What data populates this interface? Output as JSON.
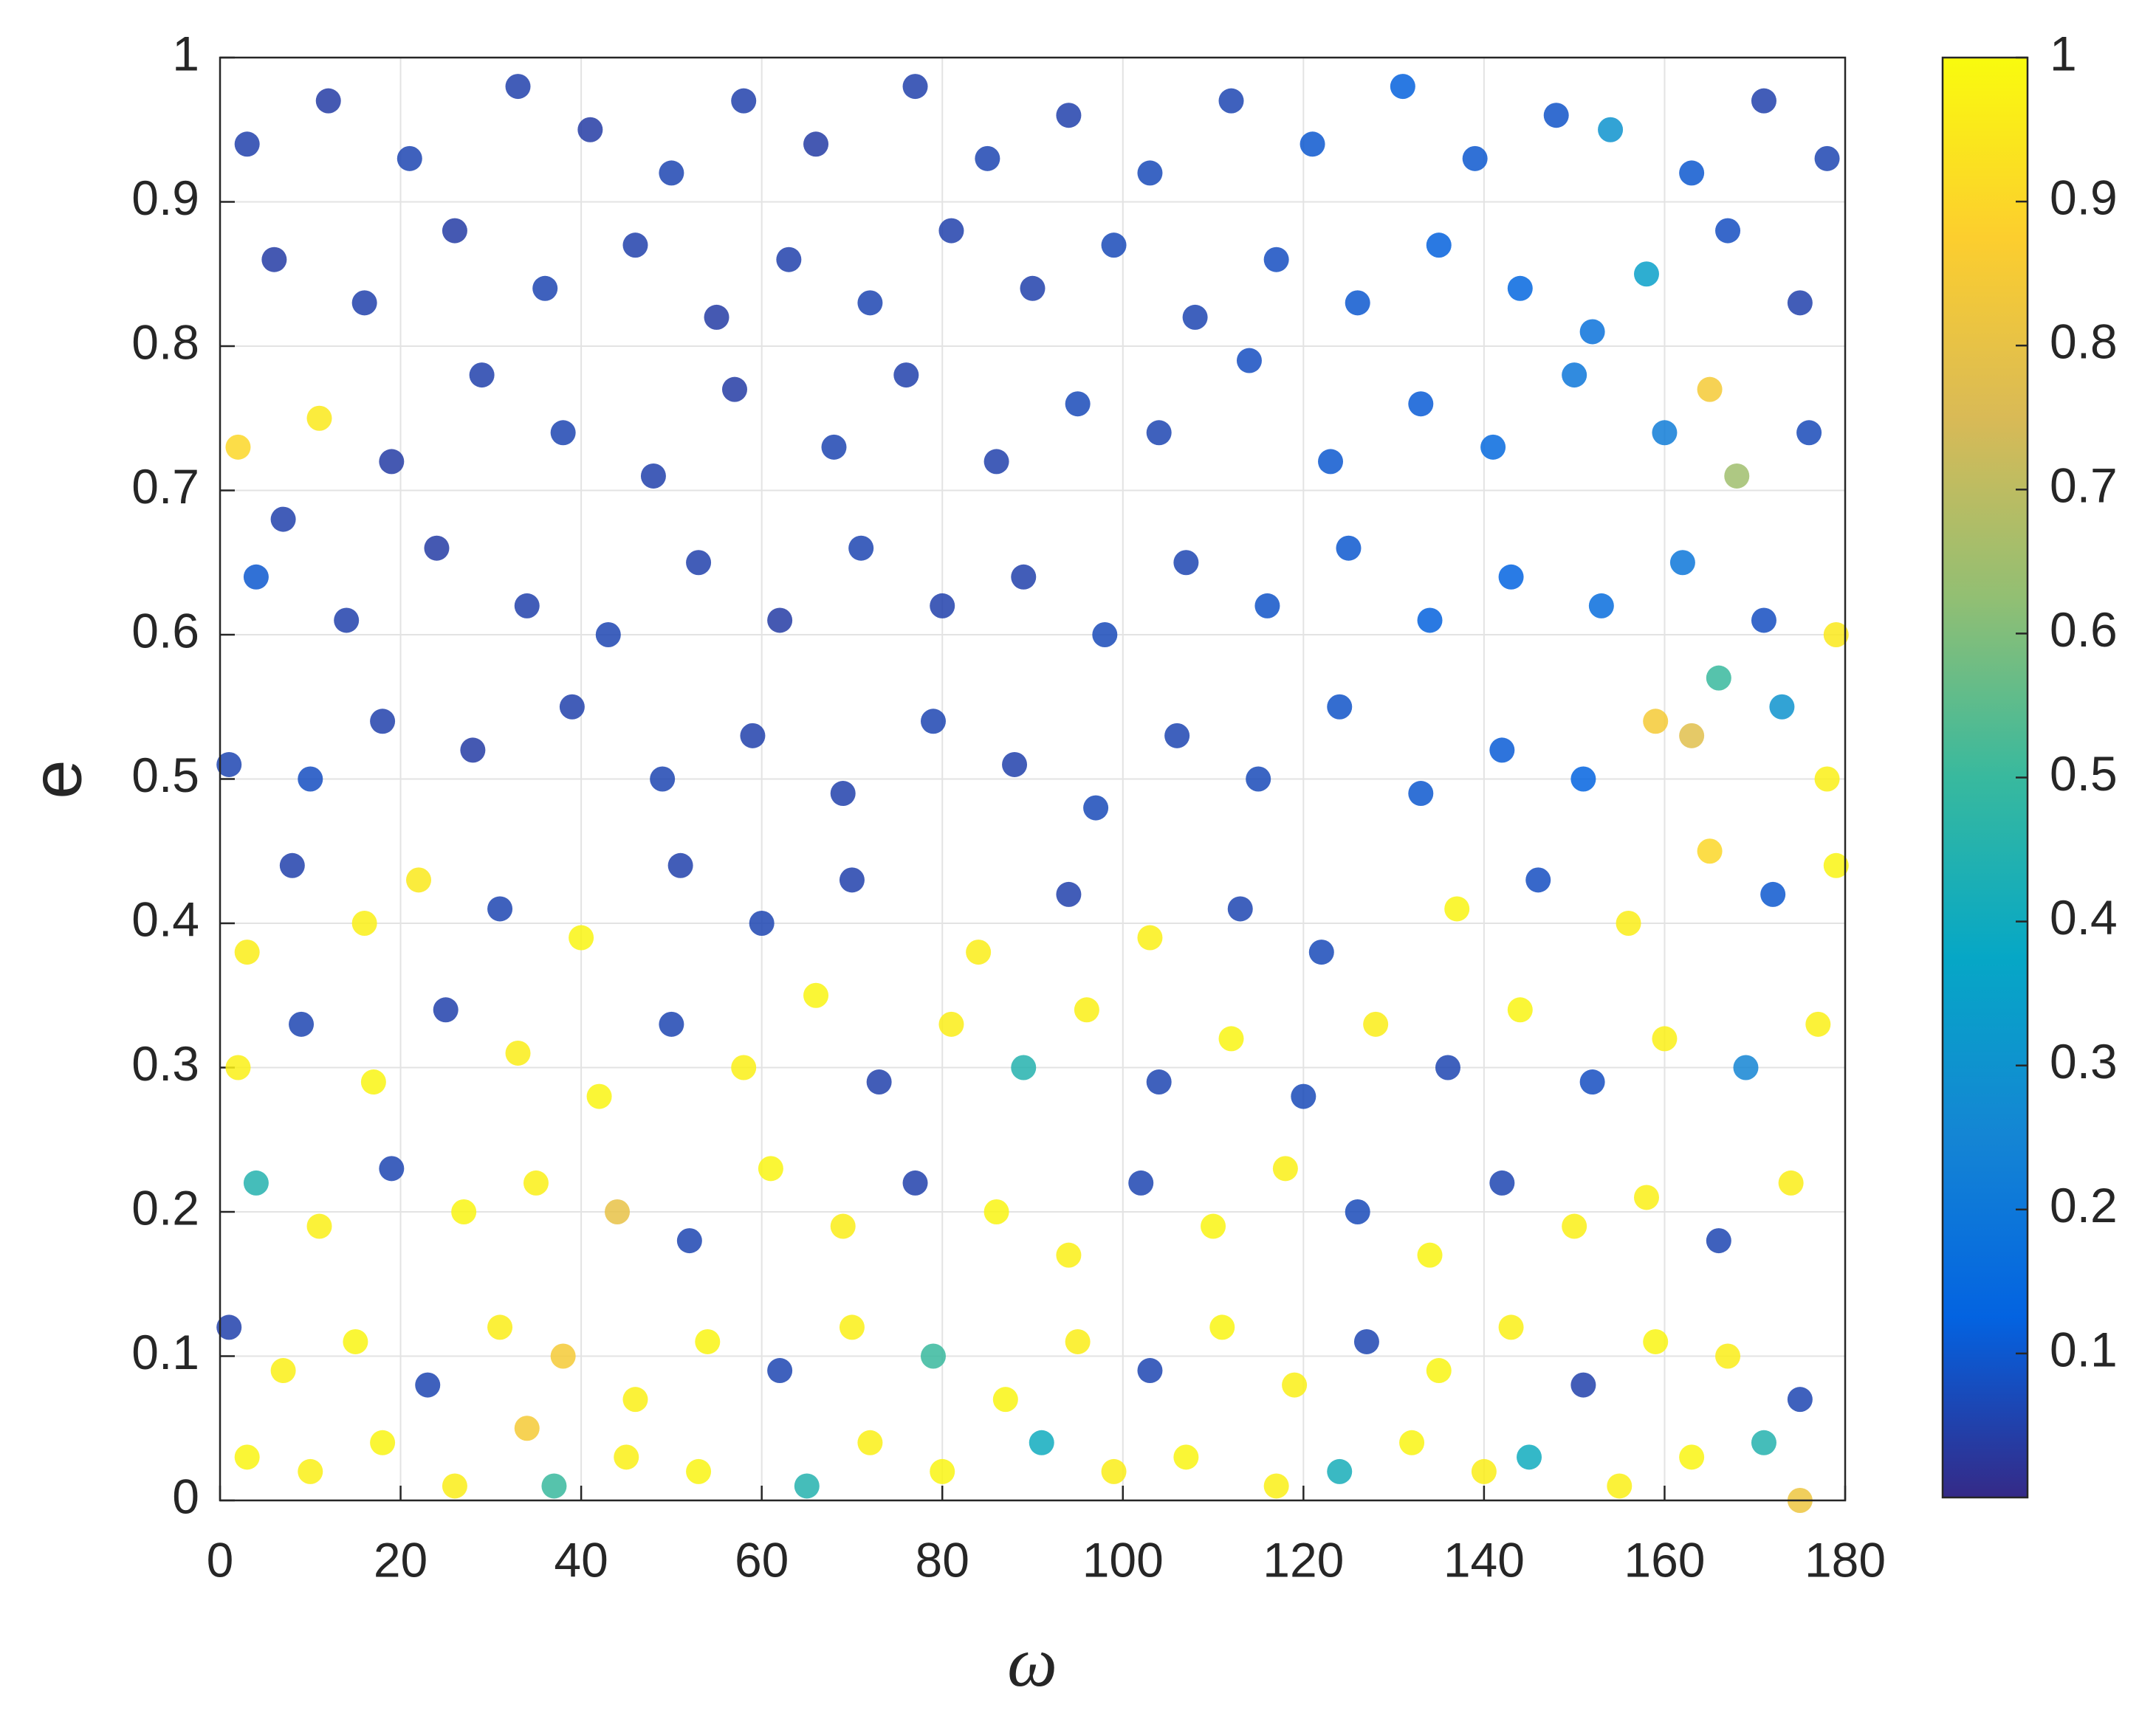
{
  "chart_data": {
    "type": "scatter",
    "xlabel": "ω",
    "ylabel": "e",
    "x": [
      3,
      12,
      21,
      33,
      41,
      50,
      58,
      66,
      77,
      85,
      94,
      103,
      112,
      121,
      131,
      139,
      148,
      154,
      163,
      171,
      178,
      6,
      16,
      26,
      36,
      46,
      55,
      63,
      72,
      81,
      90,
      99,
      108,
      117,
      126,
      135,
      144,
      152,
      158,
      167,
      175,
      2,
      11,
      7,
      19,
      29,
      38,
      48,
      57,
      68,
      76,
      86,
      95,
      104,
      114,
      123,
      133,
      141,
      150,
      160,
      165,
      168,
      176,
      4,
      14,
      24,
      34,
      43,
      53,
      62,
      71,
      80,
      89,
      98,
      107,
      116,
      125,
      134,
      143,
      153,
      162,
      166,
      171,
      179,
      1,
      10,
      18,
      28,
      39,
      49,
      59,
      69,
      79,
      88,
      97,
      106,
      115,
      124,
      133,
      142,
      151,
      159,
      163,
      173,
      178,
      3,
      8,
      16,
      22,
      31,
      40,
      51,
      60,
      70,
      84,
      94,
      103,
      113,
      122,
      137,
      146,
      156,
      165,
      172,
      179,
      2,
      9,
      17,
      25,
      33,
      42,
      50,
      58,
      66,
      73,
      81,
      89,
      96,
      104,
      112,
      120,
      128,
      136,
      144,
      152,
      160,
      169,
      177,
      4,
      11,
      19,
      27,
      35,
      44,
      52,
      61,
      69,
      77,
      86,
      94,
      102,
      110,
      118,
      126,
      134,
      142,
      150,
      158,
      166,
      174,
      1,
      7,
      15,
      23,
      31,
      38,
      46,
      54,
      62,
      70,
      79,
      87,
      95,
      103,
      111,
      119,
      127,
      135,
      143,
      151,
      159,
      167,
      175,
      3,
      10,
      18,
      26,
      34,
      37,
      45,
      53,
      65,
      72,
      80,
      91,
      99,
      107,
      117,
      124,
      132,
      140,
      145,
      155,
      163,
      171,
      175
    ],
    "values": [
      0.94,
      0.97,
      0.93,
      0.98,
      0.95,
      0.92,
      0.97,
      0.94,
      0.98,
      0.93,
      0.96,
      0.92,
      0.97,
      0.94,
      0.98,
      0.93,
      0.96,
      0.95,
      0.92,
      0.97,
      0.93,
      0.86,
      0.83,
      0.88,
      0.84,
      0.87,
      0.82,
      0.86,
      0.83,
      0.88,
      0.84,
      0.87,
      0.82,
      0.86,
      0.83,
      0.87,
      0.84,
      0.81,
      0.85,
      0.88,
      0.83,
      0.73,
      0.75,
      0.68,
      0.72,
      0.78,
      0.74,
      0.71,
      0.77,
      0.73,
      0.78,
      0.72,
      0.76,
      0.74,
      0.79,
      0.72,
      0.76,
      0.73,
      0.78,
      0.74,
      0.77,
      0.71,
      0.74,
      0.64,
      0.61,
      0.66,
      0.62,
      0.6,
      0.65,
      0.61,
      0.66,
      0.62,
      0.64,
      0.6,
      0.65,
      0.62,
      0.66,
      0.61,
      0.64,
      0.62,
      0.65,
      0.57,
      0.61,
      0.6,
      0.51,
      0.5,
      0.54,
      0.52,
      0.55,
      0.5,
      0.53,
      0.49,
      0.54,
      0.51,
      0.48,
      0.53,
      0.5,
      0.55,
      0.49,
      0.52,
      0.5,
      0.54,
      0.53,
      0.55,
      0.5,
      0.38,
      0.44,
      0.4,
      0.43,
      0.41,
      0.39,
      0.44,
      0.4,
      0.43,
      0.38,
      0.42,
      0.39,
      0.41,
      0.38,
      0.41,
      0.43,
      0.4,
      0.45,
      0.42,
      0.44,
      0.3,
      0.33,
      0.29,
      0.34,
      0.31,
      0.28,
      0.33,
      0.3,
      0.35,
      0.29,
      0.33,
      0.3,
      0.34,
      0.29,
      0.32,
      0.28,
      0.33,
      0.3,
      0.34,
      0.29,
      0.32,
      0.3,
      0.33,
      0.22,
      0.19,
      0.23,
      0.2,
      0.22,
      0.2,
      0.18,
      0.23,
      0.19,
      0.22,
      0.2,
      0.17,
      0.22,
      0.19,
      0.23,
      0.2,
      0.17,
      0.22,
      0.19,
      0.21,
      0.18,
      0.22,
      0.12,
      0.09,
      0.11,
      0.08,
      0.12,
      0.1,
      0.07,
      0.11,
      0.09,
      0.12,
      0.1,
      0.07,
      0.11,
      0.09,
      0.12,
      0.08,
      0.11,
      0.09,
      0.12,
      0.08,
      0.11,
      0.1,
      0.07,
      0.03,
      0.02,
      0.04,
      0.01,
      0.05,
      0.01,
      0.03,
      0.02,
      0.01,
      0.04,
      0.02,
      0.04,
      0.02,
      0.03,
      0.01,
      0.02,
      0.04,
      0.02,
      0.03,
      0.01,
      0.03,
      0.04,
      0
    ],
    "color_values": [
      0.05,
      0.04,
      0.06,
      0.05,
      0.04,
      0.06,
      0.05,
      0.04,
      0.05,
      0.06,
      0.05,
      0.07,
      0.06,
      0.1,
      0.12,
      0.1,
      0.09,
      0.3,
      0.1,
      0.05,
      0.06,
      0.04,
      0.05,
      0.04,
      0.06,
      0.05,
      0.04,
      0.05,
      0.06,
      0.05,
      0.05,
      0.07,
      0.06,
      0.08,
      0.1,
      0.12,
      0.14,
      0.18,
      0.35,
      0.08,
      0.05,
      0.9,
      0.95,
      0.05,
      0.04,
      0.05,
      0.06,
      0.05,
      0.04,
      0.06,
      0.05,
      0.05,
      0.07,
      0.06,
      0.08,
      0.1,
      0.11,
      0.15,
      0.2,
      0.22,
      0.85,
      0.65,
      0.07,
      0.1,
      0.05,
      0.04,
      0.05,
      0.06,
      0.05,
      0.04,
      0.06,
      0.05,
      0.05,
      0.07,
      0.06,
      0.09,
      0.1,
      0.12,
      0.13,
      0.16,
      0.2,
      0.5,
      0.08,
      0.95,
      0.06,
      0.08,
      0.05,
      0.04,
      0.05,
      0.06,
      0.05,
      0.05,
      0.06,
      0.05,
      0.07,
      0.06,
      0.07,
      0.09,
      0.1,
      0.11,
      0.13,
      0.85,
      0.78,
      0.3,
      0.97,
      0.96,
      0.05,
      0.97,
      0.95,
      0.06,
      0.98,
      0.05,
      0.06,
      0.05,
      0.96,
      0.05,
      0.97,
      0.06,
      0.07,
      0.98,
      0.08,
      0.96,
      0.9,
      0.1,
      0.98,
      0.97,
      0.06,
      0.98,
      0.05,
      0.96,
      0.98,
      0.06,
      0.97,
      0.98,
      0.05,
      0.96,
      0.45,
      0.97,
      0.06,
      0.98,
      0.07,
      0.96,
      0.06,
      0.98,
      0.08,
      0.97,
      0.25,
      0.97,
      0.45,
      0.97,
      0.06,
      0.98,
      0.97,
      0.8,
      0.06,
      0.98,
      0.96,
      0.05,
      0.98,
      0.97,
      0.06,
      0.98,
      0.97,
      0.07,
      0.98,
      0.06,
      0.97,
      0.97,
      0.06,
      0.96,
      0.05,
      0.97,
      0.98,
      0.06,
      0.96,
      0.85,
      0.97,
      0.98,
      0.06,
      0.97,
      0.5,
      0.98,
      0.96,
      0.06,
      0.98,
      0.97,
      0.06,
      0.98,
      0.97,
      0.05,
      0.98,
      0.96,
      0.06,
      0.98,
      0.97,
      0.98,
      0.96,
      0.85,
      0.5,
      0.97,
      0.98,
      0.45,
      0.97,
      0.98,
      0.4,
      0.96,
      0.98,
      0.97,
      0.42,
      0.98,
      0.96,
      0.4,
      0.97,
      0.98,
      0.45,
      0.82
    ],
    "colormap": "parula",
    "clim": [
      0,
      1
    ],
    "cticks": [
      0.1,
      0.2,
      0.3,
      0.4,
      0.5,
      0.6,
      0.7,
      0.8,
      0.9,
      1
    ],
    "xlim": [
      0,
      180
    ],
    "xticks": [
      0,
      20,
      40,
      60,
      80,
      100,
      120,
      140,
      160,
      180
    ],
    "ylim": [
      0,
      1
    ],
    "yticks": [
      0,
      0.1,
      0.2,
      0.3,
      0.4,
      0.5,
      0.6,
      0.7,
      0.8,
      0.9,
      1
    ],
    "grid": true
  }
}
